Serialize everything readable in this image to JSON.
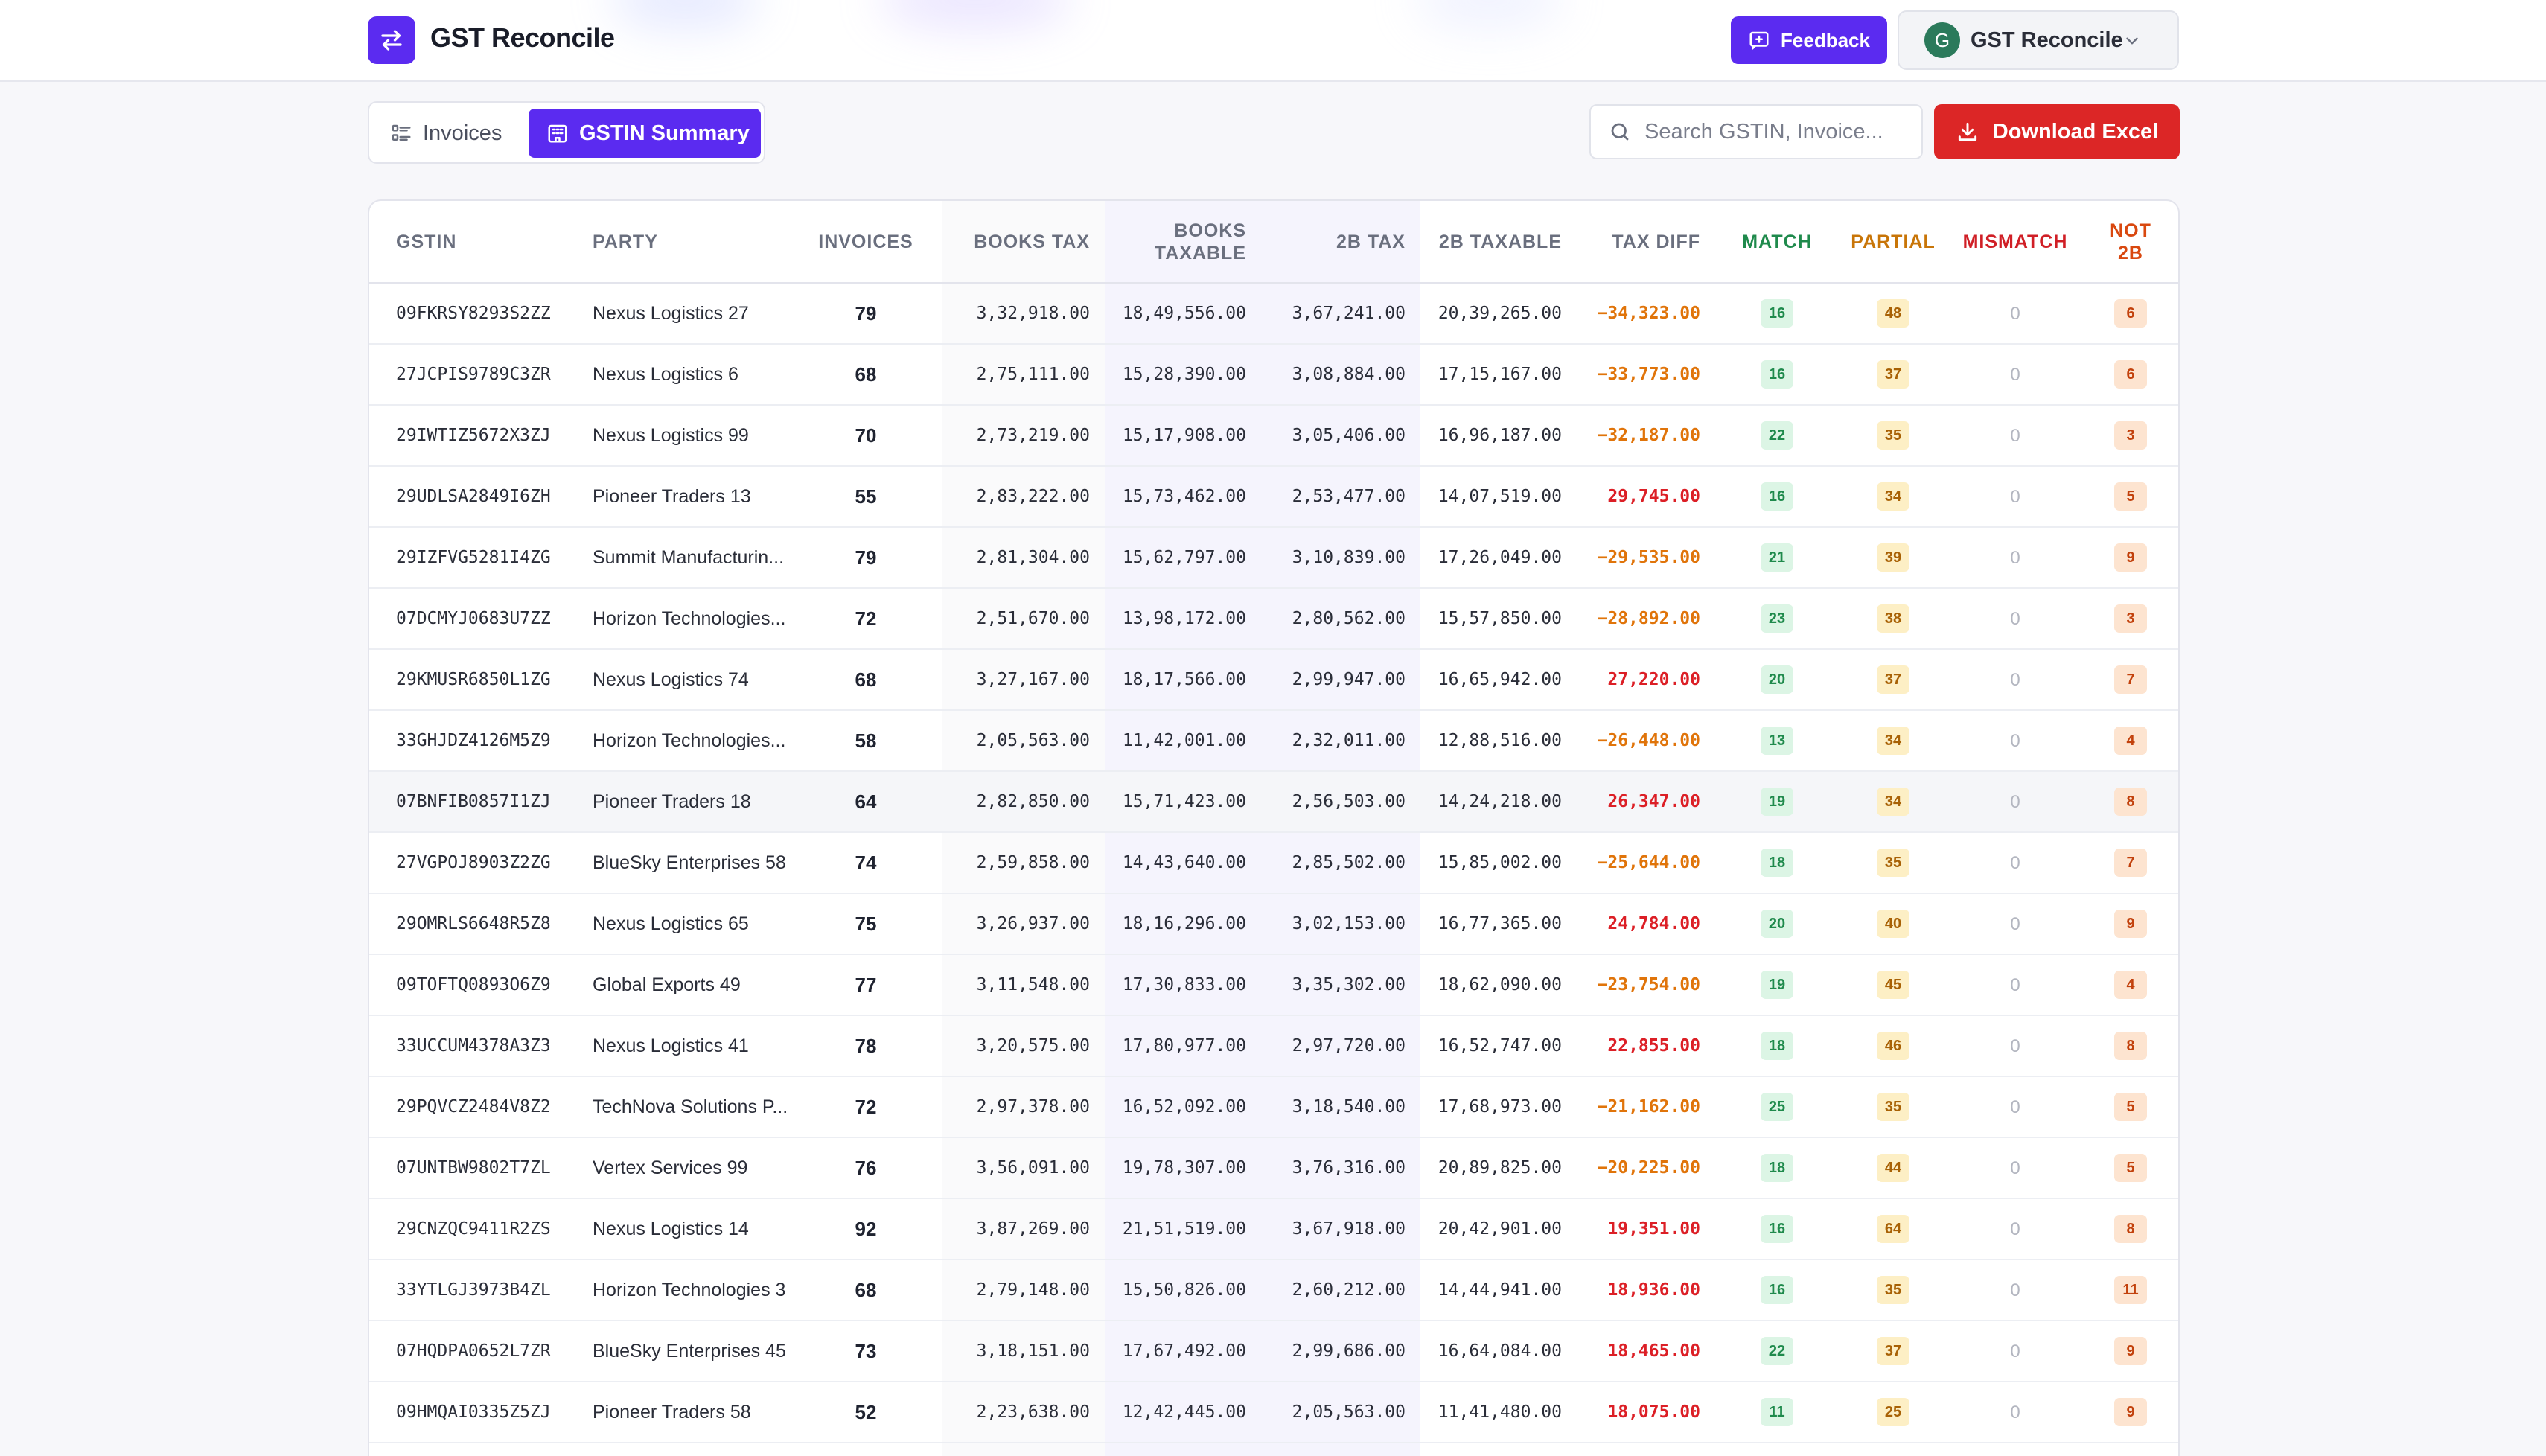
{
  "header": {
    "brand": "GST Reconcile",
    "feedback_label": "Feedback",
    "account_initial": "G",
    "account_name": "GST Reconcile",
    "colors": {
      "accent": "#5b2bf0",
      "danger": "#dc2626"
    }
  },
  "toolbar": {
    "tabs": [
      {
        "label": "Invoices",
        "icon": "list-icon",
        "active": false
      },
      {
        "label": "GSTIN Summary",
        "icon": "building-icon",
        "active": true
      }
    ],
    "search_placeholder": "Search GSTIN, Invoice...",
    "download_label": "Download Excel"
  },
  "table": {
    "columns": [
      "GSTIN",
      "PARTY",
      "INVOICES",
      "BOOKS TAX",
      "BOOKS TAXABLE",
      "2B TAX",
      "2B TAXABLE",
      "TAX DIFF",
      "MATCH",
      "PARTIAL",
      "MISMATCH",
      "NOT 2B"
    ],
    "rows": [
      {
        "gstin": "09FKRSY8293S2ZZ",
        "party": "Nexus Logistics 27",
        "invoices": "79",
        "books_tax": "3,32,918.00",
        "books_taxable": "18,49,556.00",
        "tax_2b": "3,67,241.00",
        "taxable_2b": "20,39,265.00",
        "tax_diff": "−34,323.00",
        "match": "16",
        "partial": "48",
        "mismatch": "0",
        "not_2b": "6"
      },
      {
        "gstin": "27JCPIS9789C3ZR",
        "party": "Nexus Logistics 6",
        "invoices": "68",
        "books_tax": "2,75,111.00",
        "books_taxable": "15,28,390.00",
        "tax_2b": "3,08,884.00",
        "taxable_2b": "17,15,167.00",
        "tax_diff": "−33,773.00",
        "match": "16",
        "partial": "37",
        "mismatch": "0",
        "not_2b": "6"
      },
      {
        "gstin": "29IWTIZ5672X3ZJ",
        "party": "Nexus Logistics 99",
        "invoices": "70",
        "books_tax": "2,73,219.00",
        "books_taxable": "15,17,908.00",
        "tax_2b": "3,05,406.00",
        "taxable_2b": "16,96,187.00",
        "tax_diff": "−32,187.00",
        "match": "22",
        "partial": "35",
        "mismatch": "0",
        "not_2b": "3"
      },
      {
        "gstin": "29UDLSA2849I6ZH",
        "party": "Pioneer Traders 13",
        "invoices": "55",
        "books_tax": "2,83,222.00",
        "books_taxable": "15,73,462.00",
        "tax_2b": "2,53,477.00",
        "taxable_2b": "14,07,519.00",
        "tax_diff": "29,745.00",
        "match": "16",
        "partial": "34",
        "mismatch": "0",
        "not_2b": "5"
      },
      {
        "gstin": "29IZFVG5281I4ZG",
        "party": "Summit Manufacturin...",
        "invoices": "79",
        "books_tax": "2,81,304.00",
        "books_taxable": "15,62,797.00",
        "tax_2b": "3,10,839.00",
        "taxable_2b": "17,26,049.00",
        "tax_diff": "−29,535.00",
        "match": "21",
        "partial": "39",
        "mismatch": "0",
        "not_2b": "9"
      },
      {
        "gstin": "07DCMYJ0683U7ZZ",
        "party": "Horizon Technologies...",
        "invoices": "72",
        "books_tax": "2,51,670.00",
        "books_taxable": "13,98,172.00",
        "tax_2b": "2,80,562.00",
        "taxable_2b": "15,57,850.00",
        "tax_diff": "−28,892.00",
        "match": "23",
        "partial": "38",
        "mismatch": "0",
        "not_2b": "3"
      },
      {
        "gstin": "29KMUSR6850L1ZG",
        "party": "Nexus Logistics 74",
        "invoices": "68",
        "books_tax": "3,27,167.00",
        "books_taxable": "18,17,566.00",
        "tax_2b": "2,99,947.00",
        "taxable_2b": "16,65,942.00",
        "tax_diff": "27,220.00",
        "match": "20",
        "partial": "37",
        "mismatch": "0",
        "not_2b": "7"
      },
      {
        "gstin": "33GHJDZ4126M5Z9",
        "party": "Horizon Technologies...",
        "invoices": "58",
        "books_tax": "2,05,563.00",
        "books_taxable": "11,42,001.00",
        "tax_2b": "2,32,011.00",
        "taxable_2b": "12,88,516.00",
        "tax_diff": "−26,448.00",
        "match": "13",
        "partial": "34",
        "mismatch": "0",
        "not_2b": "4"
      },
      {
        "gstin": "07BNFIB0857I1ZJ",
        "party": "Pioneer Traders 18",
        "invoices": "64",
        "books_tax": "2,82,850.00",
        "books_taxable": "15,71,423.00",
        "tax_2b": "2,56,503.00",
        "taxable_2b": "14,24,218.00",
        "tax_diff": "26,347.00",
        "match": "19",
        "partial": "34",
        "mismatch": "0",
        "not_2b": "8"
      },
      {
        "gstin": "27VGPOJ8903Z2ZG",
        "party": "BlueSky Enterprises 58",
        "invoices": "74",
        "books_tax": "2,59,858.00",
        "books_taxable": "14,43,640.00",
        "tax_2b": "2,85,502.00",
        "taxable_2b": "15,85,002.00",
        "tax_diff": "−25,644.00",
        "match": "18",
        "partial": "35",
        "mismatch": "0",
        "not_2b": "7"
      },
      {
        "gstin": "29OMRLS6648R5Z8",
        "party": "Nexus Logistics 65",
        "invoices": "75",
        "books_tax": "3,26,937.00",
        "books_taxable": "18,16,296.00",
        "tax_2b": "3,02,153.00",
        "taxable_2b": "16,77,365.00",
        "tax_diff": "24,784.00",
        "match": "20",
        "partial": "40",
        "mismatch": "0",
        "not_2b": "9"
      },
      {
        "gstin": "09TOFTQ0893O6Z9",
        "party": "Global Exports 49",
        "invoices": "77",
        "books_tax": "3,11,548.00",
        "books_taxable": "17,30,833.00",
        "tax_2b": "3,35,302.00",
        "taxable_2b": "18,62,090.00",
        "tax_diff": "−23,754.00",
        "match": "19",
        "partial": "45",
        "mismatch": "0",
        "not_2b": "4"
      },
      {
        "gstin": "33UCCUM4378A3Z3",
        "party": "Nexus Logistics 41",
        "invoices": "78",
        "books_tax": "3,20,575.00",
        "books_taxable": "17,80,977.00",
        "tax_2b": "2,97,720.00",
        "taxable_2b": "16,52,747.00",
        "tax_diff": "22,855.00",
        "match": "18",
        "partial": "46",
        "mismatch": "0",
        "not_2b": "8"
      },
      {
        "gstin": "29PQVCZ2484V8Z2",
        "party": "TechNova Solutions P...",
        "invoices": "72",
        "books_tax": "2,97,378.00",
        "books_taxable": "16,52,092.00",
        "tax_2b": "3,18,540.00",
        "taxable_2b": "17,68,973.00",
        "tax_diff": "−21,162.00",
        "match": "25",
        "partial": "35",
        "mismatch": "0",
        "not_2b": "5"
      },
      {
        "gstin": "07UNTBW9802T7ZL",
        "party": "Vertex Services 99",
        "invoices": "76",
        "books_tax": "3,56,091.00",
        "books_taxable": "19,78,307.00",
        "tax_2b": "3,76,316.00",
        "taxable_2b": "20,89,825.00",
        "tax_diff": "−20,225.00",
        "match": "18",
        "partial": "44",
        "mismatch": "0",
        "not_2b": "5"
      },
      {
        "gstin": "29CNZQC9411R2ZS",
        "party": "Nexus Logistics 14",
        "invoices": "92",
        "books_tax": "3,87,269.00",
        "books_taxable": "21,51,519.00",
        "tax_2b": "3,67,918.00",
        "taxable_2b": "20,42,901.00",
        "tax_diff": "19,351.00",
        "match": "16",
        "partial": "64",
        "mismatch": "0",
        "not_2b": "8"
      },
      {
        "gstin": "33YTLGJ3973B4ZL",
        "party": "Horizon Technologies 3",
        "invoices": "68",
        "books_tax": "2,79,148.00",
        "books_taxable": "15,50,826.00",
        "tax_2b": "2,60,212.00",
        "taxable_2b": "14,44,941.00",
        "tax_diff": "18,936.00",
        "match": "16",
        "partial": "35",
        "mismatch": "0",
        "not_2b": "11"
      },
      {
        "gstin": "07HQDPA0652L7ZR",
        "party": "BlueSky Enterprises 45",
        "invoices": "73",
        "books_tax": "3,18,151.00",
        "books_taxable": "17,67,492.00",
        "tax_2b": "2,99,686.00",
        "taxable_2b": "16,64,084.00",
        "tax_diff": "18,465.00",
        "match": "22",
        "partial": "37",
        "mismatch": "0",
        "not_2b": "9"
      },
      {
        "gstin": "09HMQAI0335Z5ZJ",
        "party": "Pioneer Traders 58",
        "invoices": "52",
        "books_tax": "2,23,638.00",
        "books_taxable": "12,42,445.00",
        "tax_2b": "2,05,563.00",
        "taxable_2b": "11,41,480.00",
        "tax_diff": "18,075.00",
        "match": "11",
        "partial": "25",
        "mismatch": "0",
        "not_2b": "9"
      }
    ]
  }
}
